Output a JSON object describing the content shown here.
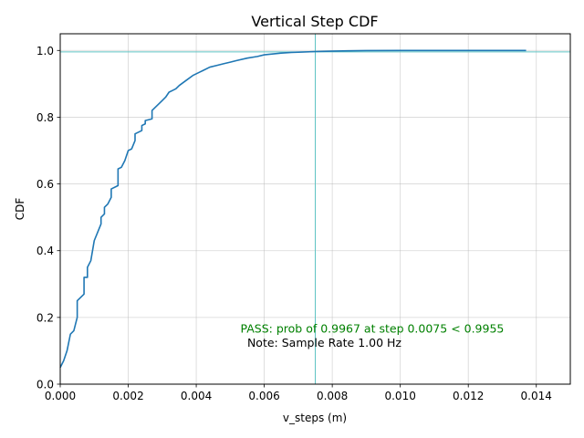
{
  "chart_data": {
    "type": "line",
    "title": "Vertical Step CDF",
    "xlabel": "v_steps (m)",
    "ylabel": "CDF",
    "xlim": [
      0,
      0.015
    ],
    "ylim": [
      0,
      1.05
    ],
    "grid": true,
    "xticks": [
      0,
      0.002,
      0.004,
      0.006,
      0.008,
      0.01,
      0.012,
      0.014
    ],
    "xtick_labels": [
      "0.000",
      "0.002",
      "0.004",
      "0.006",
      "0.008",
      "0.010",
      "0.012",
      "0.014"
    ],
    "yticks": [
      0,
      0.2,
      0.4,
      0.6,
      0.8,
      1.0
    ],
    "ytick_labels": [
      "0.0",
      "0.2",
      "0.4",
      "0.6",
      "0.8",
      "1.0"
    ],
    "series": [
      {
        "color": "#1f77b4",
        "points": [
          [
            0.0,
            0.05
          ],
          [
            0.0001,
            0.07
          ],
          [
            0.0002,
            0.1
          ],
          [
            0.0003,
            0.15
          ],
          [
            0.0004,
            0.16
          ],
          [
            0.0005,
            0.2
          ],
          [
            0.0005,
            0.25
          ],
          [
            0.0007,
            0.27
          ],
          [
            0.0007,
            0.32
          ],
          [
            0.0008,
            0.32
          ],
          [
            0.0008,
            0.35
          ],
          [
            0.0009,
            0.37
          ],
          [
            0.001,
            0.43
          ],
          [
            0.0012,
            0.48
          ],
          [
            0.0012,
            0.5
          ],
          [
            0.0013,
            0.51
          ],
          [
            0.0013,
            0.53
          ],
          [
            0.0014,
            0.54
          ],
          [
            0.0015,
            0.56
          ],
          [
            0.0015,
            0.585
          ],
          [
            0.0017,
            0.595
          ],
          [
            0.0017,
            0.645
          ],
          [
            0.0018,
            0.65
          ],
          [
            0.0019,
            0.67
          ],
          [
            0.002,
            0.7
          ],
          [
            0.0021,
            0.705
          ],
          [
            0.0022,
            0.73
          ],
          [
            0.0022,
            0.75
          ],
          [
            0.0024,
            0.76
          ],
          [
            0.0024,
            0.775
          ],
          [
            0.0025,
            0.78
          ],
          [
            0.0025,
            0.79
          ],
          [
            0.0027,
            0.795
          ],
          [
            0.0027,
            0.82
          ],
          [
            0.0029,
            0.84
          ],
          [
            0.003,
            0.85
          ],
          [
            0.0031,
            0.86
          ],
          [
            0.0032,
            0.875
          ],
          [
            0.0033,
            0.88
          ],
          [
            0.0034,
            0.885
          ],
          [
            0.0035,
            0.895
          ],
          [
            0.0037,
            0.91
          ],
          [
            0.0039,
            0.925
          ],
          [
            0.0041,
            0.935
          ],
          [
            0.0042,
            0.94
          ],
          [
            0.0044,
            0.95
          ],
          [
            0.0046,
            0.955
          ],
          [
            0.0048,
            0.96
          ],
          [
            0.005,
            0.965
          ],
          [
            0.0052,
            0.97
          ],
          [
            0.0055,
            0.977
          ],
          [
            0.0058,
            0.982
          ],
          [
            0.006,
            0.987
          ],
          [
            0.0063,
            0.99
          ],
          [
            0.0065,
            0.992
          ],
          [
            0.0068,
            0.994
          ],
          [
            0.0071,
            0.995
          ],
          [
            0.0075,
            0.9967
          ],
          [
            0.008,
            0.998
          ],
          [
            0.0085,
            0.999
          ],
          [
            0.009,
            0.9995
          ],
          [
            0.01,
            1.0
          ],
          [
            0.0137,
            1.0
          ]
        ]
      }
    ],
    "reference_lines": {
      "vertical_x": 0.0075,
      "horizontal_y": 0.9955,
      "color": "#5fc4c4"
    },
    "annotations": [
      {
        "text": "PASS: prob of 0.9967 at step 0.0075 < 0.9955",
        "x": 0.0053,
        "y": 0.155,
        "color": "#008000"
      },
      {
        "text": "Note: Sample Rate 1.00 Hz",
        "x": 0.0055,
        "y": 0.112,
        "color": "#000000"
      }
    ]
  }
}
